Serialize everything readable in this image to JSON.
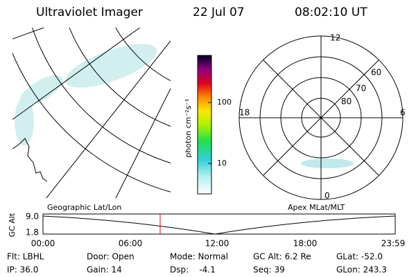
{
  "header": {
    "title": "Ultraviolet Imager",
    "date": "22 Jul 07",
    "time": "08:02:10 UT"
  },
  "colorbar": {
    "label": "photon cm⁻²s⁻¹",
    "ticks": [
      "100",
      "10"
    ]
  },
  "polar": {
    "mlt_labels": [
      "12",
      "6",
      "0",
      "18"
    ],
    "lat_labels": [
      "60",
      "70",
      "80"
    ]
  },
  "panel_labels": {
    "left": "Geographic Lat/Lon",
    "right": "Apex MLat/MLT"
  },
  "orbit": {
    "ylabel": "GC Alt",
    "yticks": [
      "9.0",
      "1.8"
    ],
    "xticks": [
      "00:00",
      "06:00",
      "12:00",
      "18:00",
      "23:59"
    ]
  },
  "info": {
    "rows": [
      [
        "Flt: LBHL",
        "Door: Open",
        "Mode: Normal",
        "GC Alt: 6.2 Re",
        "GLat: -52.0"
      ],
      [
        "IP: 36.0",
        "Gain: 14",
        "Dsp:    -4.1",
        "Seq: 39",
        "GLon: 243.3"
      ]
    ]
  }
}
